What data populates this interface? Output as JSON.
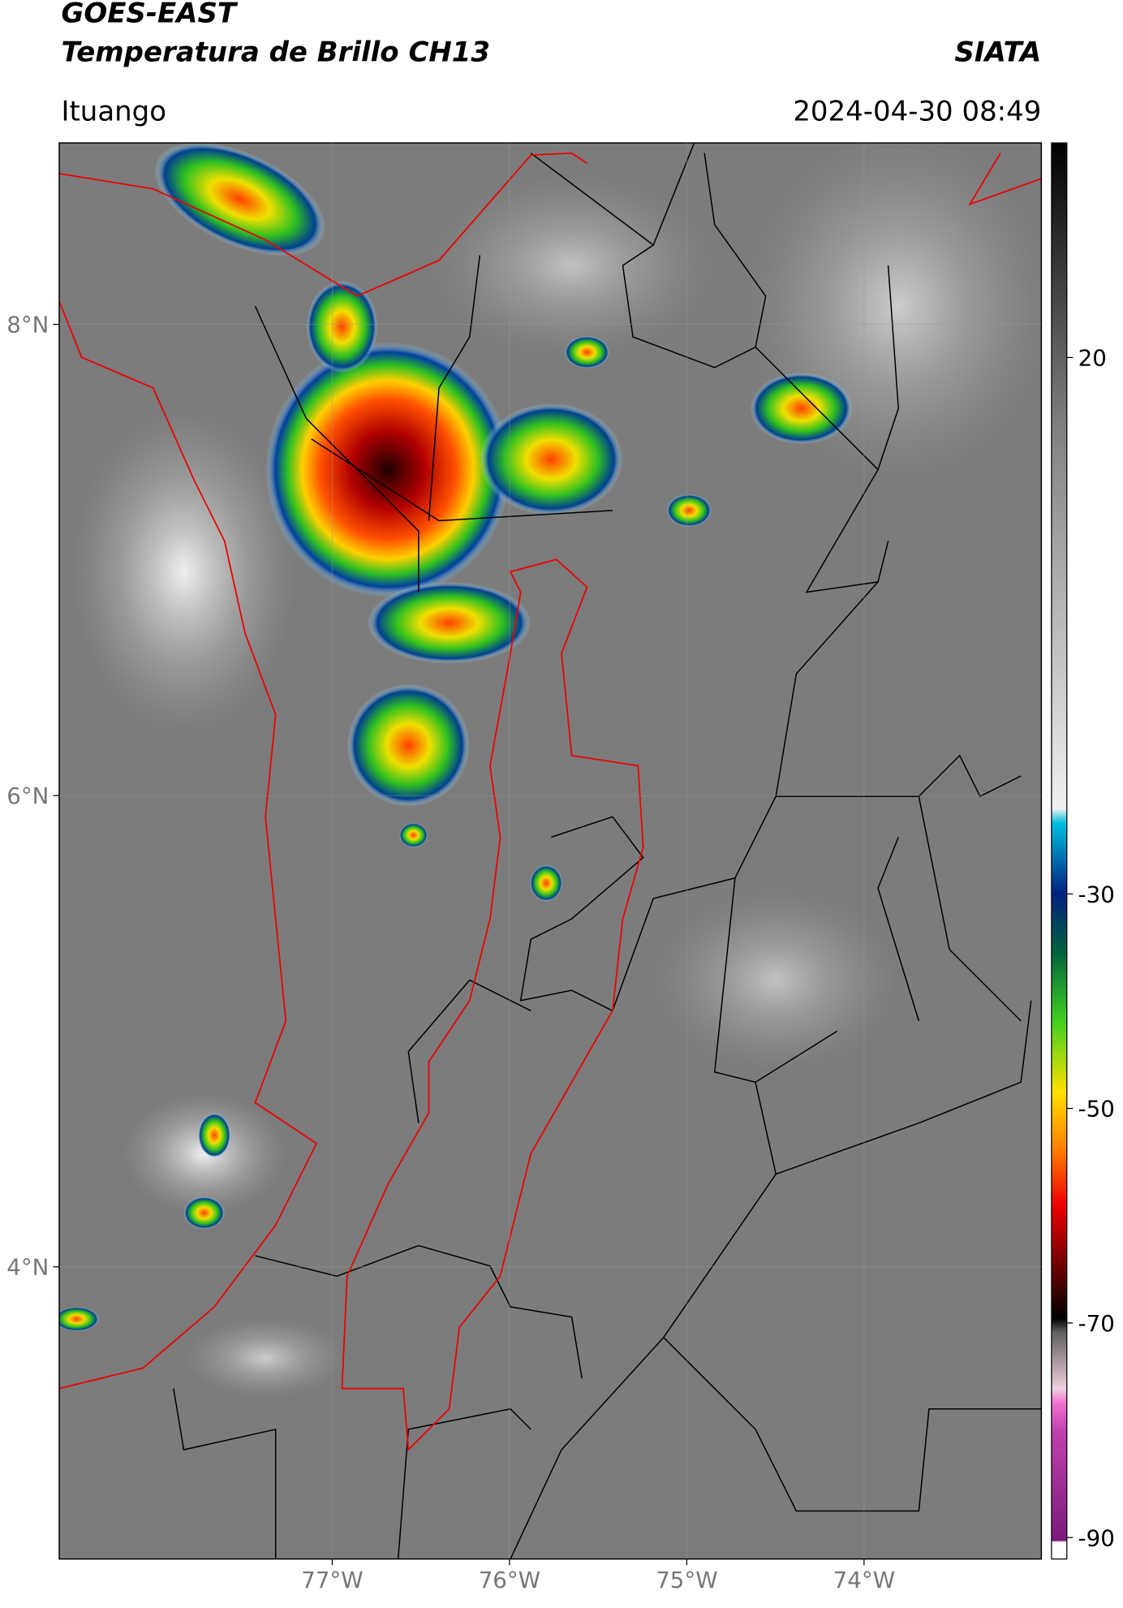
{
  "chart_data": {
    "type": "map",
    "title": "GOES-EAST",
    "subtitle": "Temperatura de Brillo CH13",
    "source": "SIATA",
    "location": "Ituango",
    "datetime": "2024-04-30 08:49",
    "xlim": [
      -78.54,
      -73.0
    ],
    "ylim": [
      2.76,
      8.77
    ],
    "xticks": [
      {
        "value": -77,
        "label": "77°W"
      },
      {
        "value": -76,
        "label": "76°W"
      },
      {
        "value": -75,
        "label": "75°W"
      },
      {
        "value": -74,
        "label": "74°W"
      }
    ],
    "yticks": [
      {
        "value": 8,
        "label": "8°N"
      },
      {
        "value": 6,
        "label": "6°N"
      },
      {
        "value": 4,
        "label": "4°N"
      }
    ],
    "grid": true,
    "colorbar": {
      "lim": [
        -92,
        40
      ],
      "ticks": [
        20,
        -30,
        -50,
        -70,
        -90
      ]
    }
  }
}
